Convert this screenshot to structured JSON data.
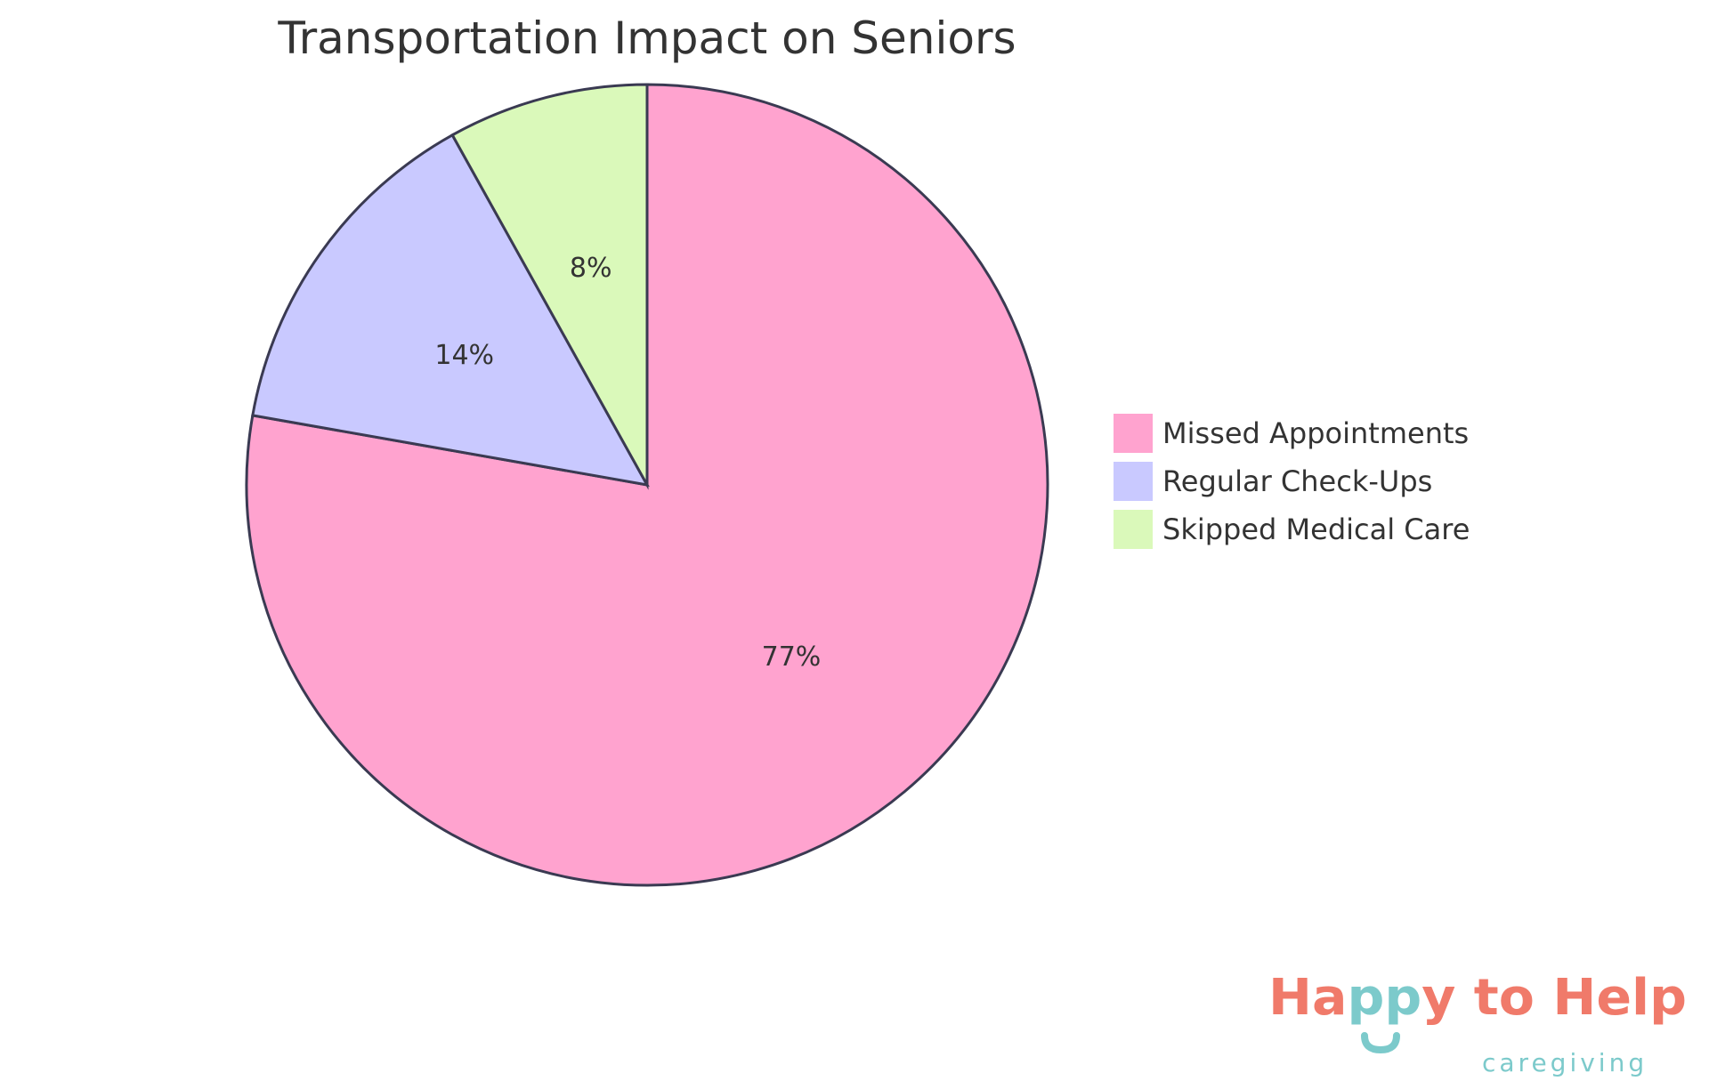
{
  "chart_data": {
    "type": "pie",
    "title": "Transportation Impact on Seniors",
    "start_angle": "top",
    "direction": "clockwise",
    "legend_placement": "right",
    "slices": [
      {
        "label": "Missed Appointments",
        "value": 77,
        "display": "77%",
        "color": "#FFA3CF"
      },
      {
        "label": "Regular Check-Ups",
        "value": 14,
        "display": "14%",
        "color": "#C9C9FF"
      },
      {
        "label": "Skipped Medical Care",
        "value": 8,
        "display": "8%",
        "color": "#DAF9BA"
      }
    ],
    "stroke_color": "#3A3A52"
  },
  "logo": {
    "text_main": "Happy to Help",
    "text_sub": "caregiving",
    "coral": "#F07A6A",
    "teal": "#7CCACB"
  }
}
